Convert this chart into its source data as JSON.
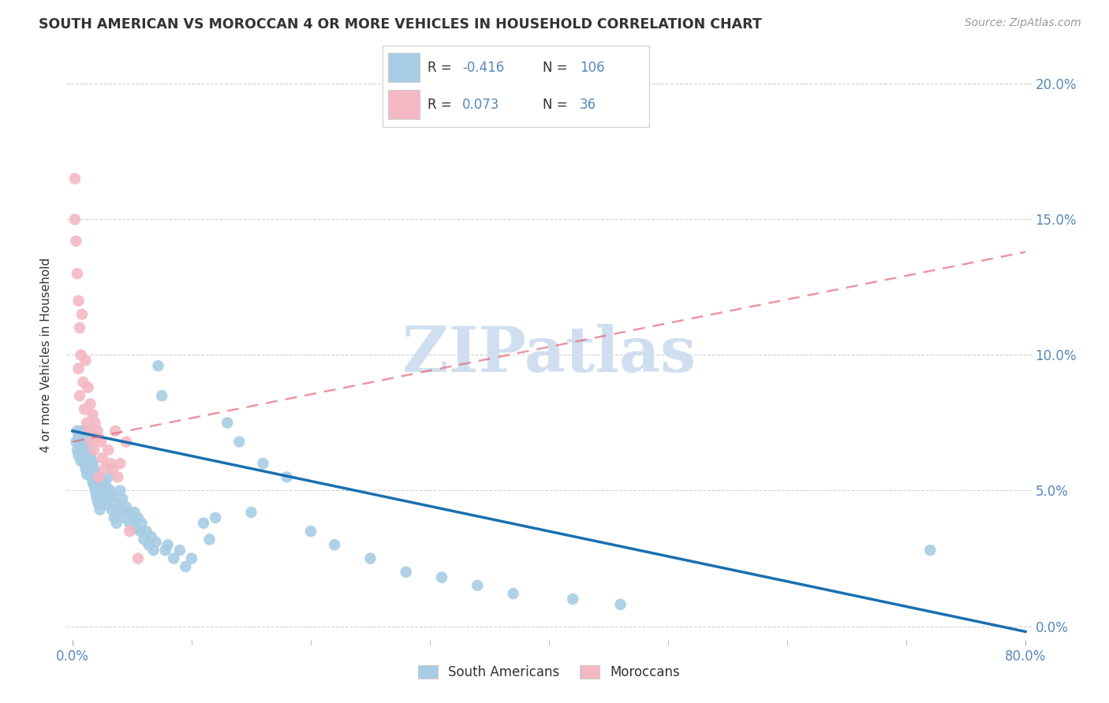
{
  "title": "SOUTH AMERICAN VS MOROCCAN 4 OR MORE VEHICLES IN HOUSEHOLD CORRELATION CHART",
  "source": "Source: ZipAtlas.com",
  "ylabel": "4 or more Vehicles in Household",
  "xlabel": "",
  "watermark": "ZIPatlas",
  "xlim": [
    -0.005,
    0.805
  ],
  "ylim": [
    -0.005,
    0.205
  ],
  "x_ticks": [
    0.0,
    0.8
  ],
  "y_ticks": [
    0.0,
    0.05,
    0.1,
    0.15,
    0.2
  ],
  "x_tick_labels_bottom": [
    "0.0%",
    "80.0%"
  ],
  "y_tick_labels_right": [
    "0.0%",
    "5.0%",
    "10.0%",
    "15.0%",
    "20.0%"
  ],
  "blue_R": -0.416,
  "blue_N": 106,
  "pink_R": 0.073,
  "pink_N": 36,
  "blue_color": "#a8cce4",
  "pink_color": "#f4b8c4",
  "blue_line_color": "#1a6faf",
  "pink_line_color": "#e06070",
  "title_color": "#333333",
  "axis_color": "#5588bb",
  "grid_color": "#cccccc",
  "background_color": "#ffffff",
  "watermark_color": "#d0dff0",
  "blue_line_start_x": 0.0,
  "blue_line_start_y": 0.072,
  "blue_line_end_x": 0.8,
  "blue_line_end_y": -0.002,
  "pink_line_start_x": 0.0,
  "pink_line_start_y": 0.068,
  "pink_line_end_x": 0.8,
  "pink_line_end_y": 0.138,
  "south_american_x": [
    0.003,
    0.004,
    0.004,
    0.005,
    0.005,
    0.006,
    0.006,
    0.007,
    0.007,
    0.007,
    0.008,
    0.008,
    0.009,
    0.009,
    0.01,
    0.01,
    0.01,
    0.011,
    0.011,
    0.011,
    0.012,
    0.012,
    0.012,
    0.013,
    0.013,
    0.014,
    0.014,
    0.015,
    0.015,
    0.016,
    0.016,
    0.017,
    0.017,
    0.018,
    0.018,
    0.019,
    0.019,
    0.02,
    0.02,
    0.021,
    0.021,
    0.022,
    0.022,
    0.023,
    0.023,
    0.024,
    0.025,
    0.025,
    0.026,
    0.027,
    0.028,
    0.029,
    0.03,
    0.031,
    0.032,
    0.033,
    0.034,
    0.035,
    0.036,
    0.037,
    0.038,
    0.04,
    0.041,
    0.042,
    0.044,
    0.045,
    0.047,
    0.048,
    0.05,
    0.052,
    0.053,
    0.055,
    0.057,
    0.058,
    0.06,
    0.062,
    0.064,
    0.066,
    0.068,
    0.07,
    0.072,
    0.075,
    0.078,
    0.08,
    0.085,
    0.09,
    0.095,
    0.1,
    0.11,
    0.115,
    0.12,
    0.13,
    0.14,
    0.15,
    0.16,
    0.18,
    0.2,
    0.22,
    0.25,
    0.28,
    0.31,
    0.34,
    0.37,
    0.42,
    0.46,
    0.72
  ],
  "south_american_y": [
    0.068,
    0.072,
    0.065,
    0.07,
    0.063,
    0.071,
    0.064,
    0.072,
    0.067,
    0.061,
    0.069,
    0.063,
    0.07,
    0.065,
    0.072,
    0.068,
    0.06,
    0.07,
    0.064,
    0.058,
    0.068,
    0.062,
    0.056,
    0.066,
    0.06,
    0.065,
    0.058,
    0.063,
    0.056,
    0.061,
    0.055,
    0.06,
    0.053,
    0.058,
    0.052,
    0.056,
    0.05,
    0.055,
    0.048,
    0.053,
    0.046,
    0.052,
    0.045,
    0.05,
    0.043,
    0.048,
    0.053,
    0.046,
    0.05,
    0.048,
    0.052,
    0.045,
    0.055,
    0.048,
    0.05,
    0.043,
    0.048,
    0.04,
    0.045,
    0.038,
    0.042,
    0.05,
    0.043,
    0.047,
    0.04,
    0.044,
    0.042,
    0.038,
    0.04,
    0.042,
    0.036,
    0.04,
    0.035,
    0.038,
    0.032,
    0.035,
    0.03,
    0.033,
    0.028,
    0.031,
    0.096,
    0.085,
    0.028,
    0.03,
    0.025,
    0.028,
    0.022,
    0.025,
    0.038,
    0.032,
    0.04,
    0.075,
    0.068,
    0.042,
    0.06,
    0.055,
    0.035,
    0.03,
    0.025,
    0.02,
    0.018,
    0.015,
    0.012,
    0.01,
    0.008,
    0.028
  ],
  "moroccan_x": [
    0.002,
    0.002,
    0.003,
    0.004,
    0.005,
    0.005,
    0.006,
    0.006,
    0.007,
    0.008,
    0.009,
    0.01,
    0.011,
    0.012,
    0.013,
    0.014,
    0.015,
    0.016,
    0.017,
    0.018,
    0.019,
    0.02,
    0.021,
    0.022,
    0.024,
    0.025,
    0.027,
    0.03,
    0.032,
    0.034,
    0.036,
    0.038,
    0.04,
    0.045,
    0.048,
    0.055
  ],
  "moroccan_y": [
    0.165,
    0.15,
    0.142,
    0.13,
    0.12,
    0.095,
    0.11,
    0.085,
    0.1,
    0.115,
    0.09,
    0.08,
    0.098,
    0.075,
    0.088,
    0.072,
    0.082,
    0.068,
    0.078,
    0.065,
    0.075,
    0.07,
    0.072,
    0.055,
    0.068,
    0.062,
    0.058,
    0.065,
    0.06,
    0.058,
    0.072,
    0.055,
    0.06,
    0.068,
    0.035,
    0.025
  ]
}
